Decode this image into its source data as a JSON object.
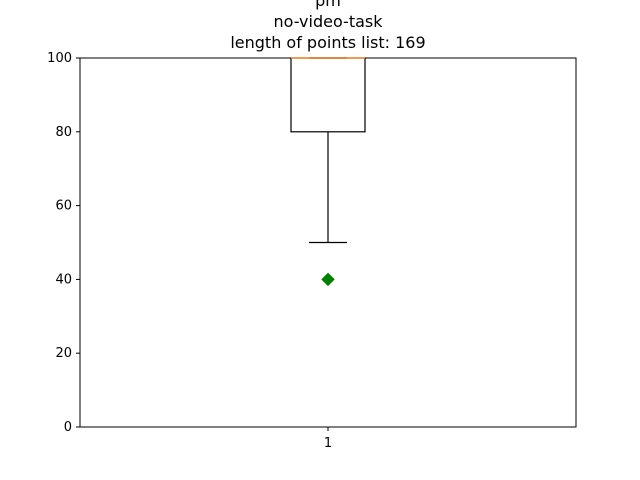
{
  "chart_data": {
    "type": "box",
    "title_lines": [
      "pm",
      "no-video-task",
      "length of points list: 169"
    ],
    "xlabel": "",
    "ylabel": "",
    "categories": [
      "1"
    ],
    "ylim": [
      0,
      100
    ],
    "yticks": [
      0,
      20,
      40,
      60,
      80,
      100
    ],
    "grid": false,
    "boxes": [
      {
        "category": "1",
        "whisker_low": 50,
        "q1": 80,
        "median": 100,
        "q3": 100,
        "whisker_high": 100,
        "fliers": [
          40
        ]
      }
    ],
    "colors": {
      "box": "#000000",
      "median": "#ff7f0e",
      "flier": "#008000"
    }
  }
}
